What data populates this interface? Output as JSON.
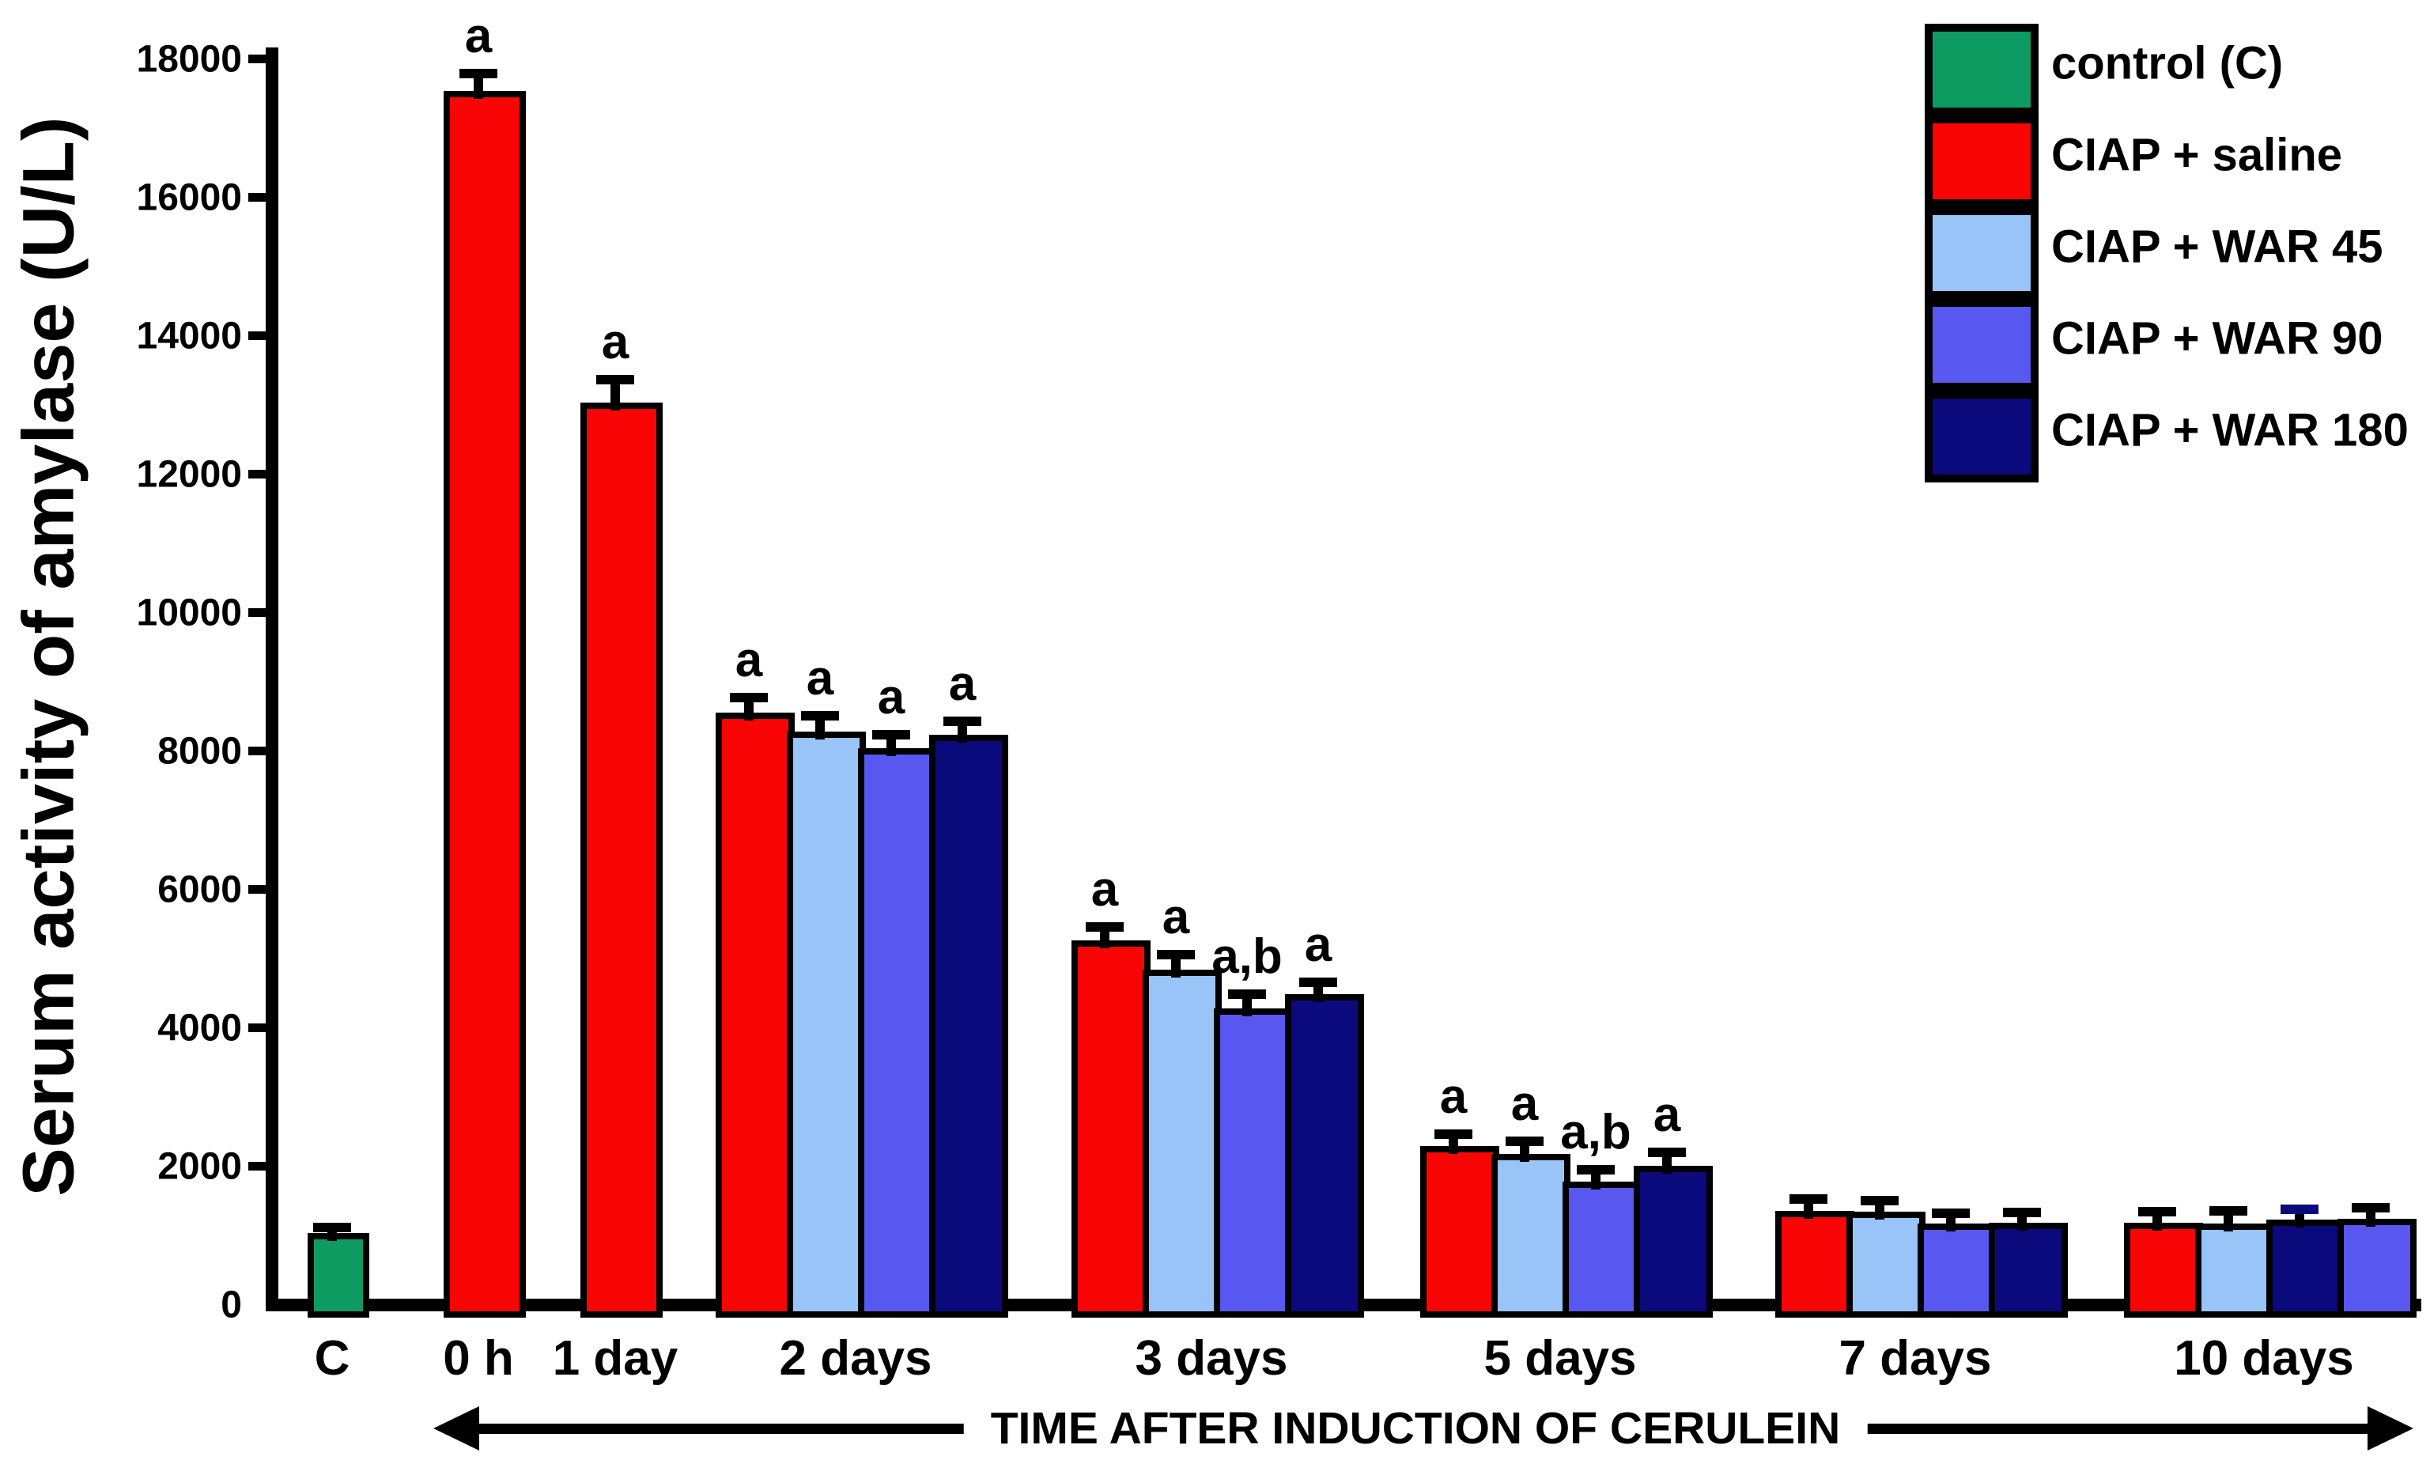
{
  "figure": {
    "background": "#ffffff",
    "axis_color": "#000000"
  },
  "legend": {
    "items": [
      {
        "label": "control (C)",
        "color": "#0D9B62"
      },
      {
        "label": "CIAP + saline",
        "color": "#FA0505"
      },
      {
        "label": "CIAP + WAR 45",
        "color": "#99C4F8"
      },
      {
        "label": "CIAP + WAR 90",
        "color": "#5858F0"
      },
      {
        "label": "CIAP + WAR 180",
        "color": "#0A0A7D"
      }
    ]
  },
  "chart_data": {
    "type": "bar",
    "title": "",
    "ylabel": "Serum activity of amylase (U/L)",
    "xlabel": "TIME AFTER INDUCTION OF CERULEIN",
    "ylim": [
      0,
      18000
    ],
    "yticks": [
      0,
      2000,
      4000,
      6000,
      8000,
      10000,
      12000,
      14000,
      16000,
      18000
    ],
    "grid": false,
    "legend_position": "top-right",
    "error_bars": "+SEM, black caps",
    "categories": [
      "C",
      "0 h",
      "1 day",
      "2 days",
      "3 days",
      "5 days",
      "7 days",
      "10 days"
    ],
    "groups": [
      {
        "label": "C",
        "bars": [
          {
            "series": "control (C)",
            "color": "#0D9B62",
            "value": 950,
            "error": 80,
            "annotation": ""
          }
        ]
      },
      {
        "label": "0 h",
        "bars": [
          {
            "series": "CIAP + saline",
            "color": "#FA0505",
            "value": 17450,
            "error": 250,
            "annotation": "a"
          }
        ]
      },
      {
        "label": "1 day",
        "bars": [
          {
            "series": "CIAP + saline",
            "color": "#FA0505",
            "value": 12950,
            "error": 330,
            "annotation": "a"
          }
        ]
      },
      {
        "label": "2 days",
        "bars": [
          {
            "series": "CIAP + saline",
            "color": "#FA0505",
            "value": 8470,
            "error": 220,
            "annotation": "a"
          },
          {
            "series": "CIAP + WAR 45",
            "color": "#99C4F8",
            "value": 8190,
            "error": 230,
            "annotation": "a"
          },
          {
            "series": "CIAP + WAR 90",
            "color": "#5858F0",
            "value": 7960,
            "error": 190,
            "annotation": "a"
          },
          {
            "series": "CIAP + WAR 180",
            "color": "#0A0A7D",
            "value": 8150,
            "error": 190,
            "annotation": "a"
          }
        ]
      },
      {
        "label": "3 days",
        "bars": [
          {
            "series": "CIAP + saline",
            "color": "#FA0505",
            "value": 5180,
            "error": 190,
            "annotation": "a"
          },
          {
            "series": "CIAP + WAR 45",
            "color": "#99C4F8",
            "value": 4760,
            "error": 210,
            "annotation": "a"
          },
          {
            "series": "CIAP + WAR 90",
            "color": "#5858F0",
            "value": 4200,
            "error": 200,
            "annotation": "a,b"
          },
          {
            "series": "CIAP + WAR 180",
            "color": "#0A0A7D",
            "value": 4400,
            "error": 170,
            "annotation": "a"
          }
        ]
      },
      {
        "label": "5 days",
        "bars": [
          {
            "series": "CIAP + saline",
            "color": "#FA0505",
            "value": 2210,
            "error": 170,
            "annotation": "a"
          },
          {
            "series": "CIAP + WAR 45",
            "color": "#99C4F8",
            "value": 2090,
            "error": 190,
            "annotation": "a"
          },
          {
            "series": "CIAP + WAR 90",
            "color": "#5858F0",
            "value": 1690,
            "error": 170,
            "annotation": "a,b"
          },
          {
            "series": "CIAP + WAR 180",
            "color": "#0A0A7D",
            "value": 1920,
            "error": 195,
            "annotation": "a"
          }
        ]
      },
      {
        "label": "7 days",
        "bars": [
          {
            "series": "CIAP + saline",
            "color": "#FA0505",
            "value": 1270,
            "error": 170,
            "annotation": ""
          },
          {
            "series": "CIAP + WAR 45",
            "color": "#99C4F8",
            "value": 1260,
            "error": 160,
            "annotation": ""
          },
          {
            "series": "CIAP + WAR 90",
            "color": "#5858F0",
            "value": 1090,
            "error": 150,
            "annotation": ""
          },
          {
            "series": "CIAP + WAR 180",
            "color": "#0A0A7D",
            "value": 1100,
            "error": 150,
            "annotation": ""
          }
        ]
      },
      {
        "label": "10 days",
        "bars": [
          {
            "series": "CIAP + saline",
            "color": "#FA0505",
            "value": 1100,
            "error": 160,
            "annotation": ""
          },
          {
            "series": "CIAP + WAR 45",
            "color": "#99C4F8",
            "value": 1090,
            "error": 180,
            "annotation": ""
          },
          {
            "series": "CIAP + WAR 180",
            "color": "#0A0A7D",
            "value": 1140,
            "error": 150,
            "annotation": "",
            "cap_color": "#0A0A7D"
          },
          {
            "series": "CIAP + WAR 90",
            "color": "#5858F0",
            "value": 1150,
            "error": 160,
            "annotation": ""
          }
        ]
      }
    ]
  }
}
